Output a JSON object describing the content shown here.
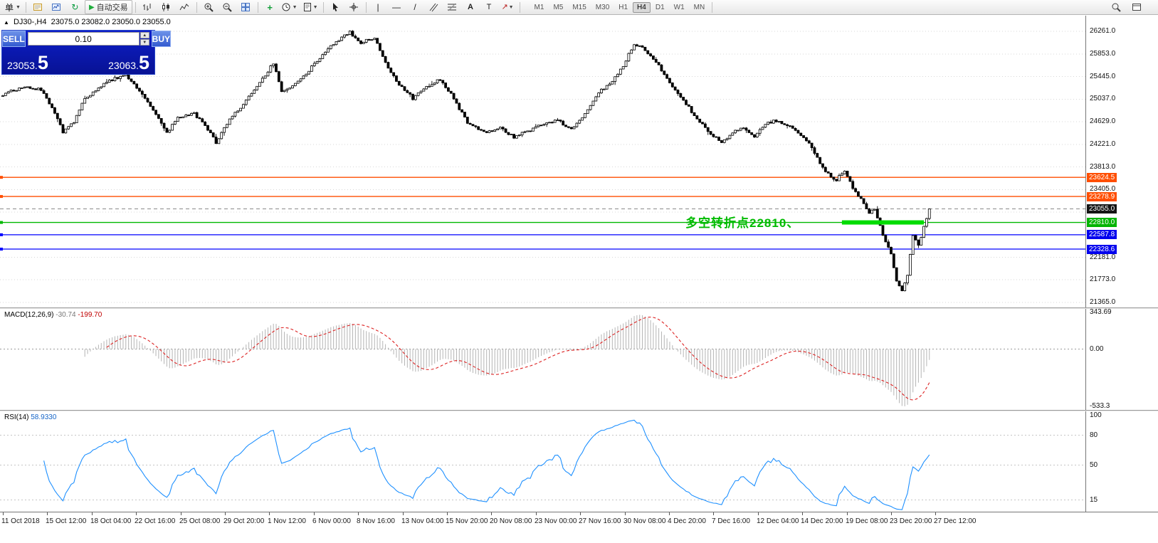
{
  "toolbar": {
    "menu_label": "单",
    "autotrade_label": "自动交易",
    "timeframes": [
      "M1",
      "M5",
      "M15",
      "M30",
      "H1",
      "H4",
      "D1",
      "W1",
      "MN"
    ],
    "active_timeframe": "H4"
  },
  "trade_panel": {
    "sell_label": "SELL",
    "buy_label": "BUY",
    "volume": "0.10",
    "sell_price": "23053.",
    "sell_frac": "5",
    "buy_price": "23063.",
    "buy_frac": "5"
  },
  "chart_data": {
    "type": "candlestick",
    "symbol_title": "DJ30-,H4",
    "ohlc_text": "23075.0 23082.0 23050.0 23055.0",
    "candle_count": 340,
    "price_anchors": [
      [
        0,
        25120
      ],
      [
        8,
        25260
      ],
      [
        14,
        25200
      ],
      [
        18,
        24900
      ],
      [
        22,
        24450
      ],
      [
        26,
        24620
      ],
      [
        30,
        25050
      ],
      [
        38,
        25350
      ],
      [
        45,
        25480
      ],
      [
        50,
        25200
      ],
      [
        56,
        24780
      ],
      [
        60,
        24420
      ],
      [
        64,
        24700
      ],
      [
        70,
        24780
      ],
      [
        74,
        24560
      ],
      [
        78,
        24250
      ],
      [
        82,
        24600
      ],
      [
        88,
        24950
      ],
      [
        94,
        25320
      ],
      [
        99,
        25690
      ],
      [
        102,
        25180
      ],
      [
        107,
        25300
      ],
      [
        112,
        25560
      ],
      [
        118,
        25900
      ],
      [
        123,
        26120
      ],
      [
        127,
        26240
      ],
      [
        131,
        26060
      ],
      [
        136,
        26150
      ],
      [
        140,
        25700
      ],
      [
        145,
        25300
      ],
      [
        150,
        25050
      ],
      [
        155,
        25250
      ],
      [
        160,
        25400
      ],
      [
        165,
        25050
      ],
      [
        170,
        24600
      ],
      [
        176,
        24430
      ],
      [
        182,
        24520
      ],
      [
        187,
        24350
      ],
      [
        192,
        24460
      ],
      [
        198,
        24600
      ],
      [
        203,
        24650
      ],
      [
        208,
        24500
      ],
      [
        213,
        24770
      ],
      [
        218,
        25170
      ],
      [
        222,
        25300
      ],
      [
        227,
        25650
      ],
      [
        231,
        26040
      ],
      [
        235,
        25930
      ],
      [
        239,
        25720
      ],
      [
        243,
        25400
      ],
      [
        247,
        25130
      ],
      [
        251,
        24880
      ],
      [
        255,
        24620
      ],
      [
        259,
        24420
      ],
      [
        263,
        24230
      ],
      [
        267,
        24450
      ],
      [
        271,
        24520
      ],
      [
        275,
        24370
      ],
      [
        279,
        24590
      ],
      [
        283,
        24650
      ],
      [
        287,
        24560
      ],
      [
        291,
        24430
      ],
      [
        294,
        24300
      ],
      [
        297,
        24050
      ],
      [
        301,
        23720
      ],
      [
        305,
        23580
      ],
      [
        308,
        23760
      ],
      [
        311,
        23420
      ],
      [
        314,
        23220
      ],
      [
        317,
        22990
      ],
      [
        319,
        23050
      ],
      [
        322,
        22570
      ],
      [
        325,
        22230
      ],
      [
        327,
        21760
      ],
      [
        329,
        21600
      ],
      [
        331,
        21850
      ],
      [
        333,
        22600
      ],
      [
        335,
        22380
      ],
      [
        337,
        22720
      ],
      [
        338,
        22880
      ],
      [
        339,
        23055
      ]
    ],
    "price_axis": {
      "labels": [
        {
          "v": 26261,
          "t": "26261.0"
        },
        {
          "v": 25853,
          "t": "25853.0"
        },
        {
          "v": 25445,
          "t": "25445.0"
        },
        {
          "v": 25037,
          "t": "25037.0"
        },
        {
          "v": 24629,
          "t": "24629.0"
        },
        {
          "v": 24221,
          "t": "24221.0"
        },
        {
          "v": 23813,
          "t": "23813.0"
        },
        {
          "v": 23405,
          "t": "23405.0"
        },
        {
          "v": 22181,
          "t": "22181.0"
        },
        {
          "v": 21773,
          "t": "21773.0"
        },
        {
          "v": 21365,
          "t": "21365.0"
        }
      ],
      "grid_values": [
        26261,
        25853,
        25445,
        25037,
        24629,
        24221,
        23813,
        23405,
        22997,
        22589,
        22181,
        21773,
        21365
      ]
    },
    "hlines": [
      {
        "v": 23624.5,
        "t": "23624.5",
        "color": "#FF4E00",
        "tag": "#FF4E00",
        "handle": true
      },
      {
        "v": 23278.9,
        "t": "23278.9",
        "color": "#FF4E00",
        "tag": "#FF4E00",
        "handle": true
      },
      {
        "v": 23055.0,
        "t": "23055.0",
        "color": "#8a8a8a",
        "tag": "#141414",
        "style": "dashed"
      },
      {
        "v": 22810.0,
        "t": "22810.0",
        "color": "#00B800",
        "tag": "#00B400",
        "handle": true
      },
      {
        "v": 22587.8,
        "t": "22587.8",
        "color": "#0000FF",
        "tag": "#0000EE",
        "handle": true
      },
      {
        "v": 22328.6,
        "t": "22328.6",
        "color": "#0000FF",
        "tag": "#0000EE",
        "handle": true
      }
    ],
    "highlight_segment": {
      "i1": 307,
      "i2": 337,
      "v": 22810,
      "color": "#00DC00"
    },
    "annotation": {
      "text": "多空转折点22810、",
      "color": "#00BB00"
    },
    "time_axis": [
      "11 Oct 2018",
      "15 Oct 12:00",
      "18 Oct 04:00",
      "22 Oct 16:00",
      "25 Oct 08:00",
      "29 Oct 20:00",
      "1 Nov 12:00",
      "6 Nov 00:00",
      "8 Nov 16:00",
      "13 Nov 04:00",
      "15 Nov 20:00",
      "20 Nov 08:00",
      "23 Nov 00:00",
      "27 Nov 16:00",
      "30 Nov 08:00",
      "4 Dec 20:00",
      "7 Dec 16:00",
      "12 Dec 04:00",
      "14 Dec 20:00",
      "19 Dec 08:00",
      "23 Dec 20:00",
      "27 Dec 12:00"
    ],
    "indicators": {
      "macd": {
        "label": "MACD(12,26,9)",
        "value_main": "-30.74",
        "value_signal": "-199.70",
        "axis": [
          {
            "v": 343.69,
            "t": "343.69"
          },
          {
            "v": 0,
            "t": "0.00"
          },
          {
            "v": -533.3,
            "t": "-533.3"
          }
        ]
      },
      "rsi": {
        "label": "RSI(14)",
        "value": "58.9330",
        "axis": [
          {
            "v": 100,
            "t": "100"
          },
          {
            "v": 80,
            "t": "80"
          },
          {
            "v": 50,
            "t": "50"
          },
          {
            "v": 15,
            "t": "15"
          }
        ],
        "levels": [
          80,
          50,
          15
        ]
      }
    }
  }
}
